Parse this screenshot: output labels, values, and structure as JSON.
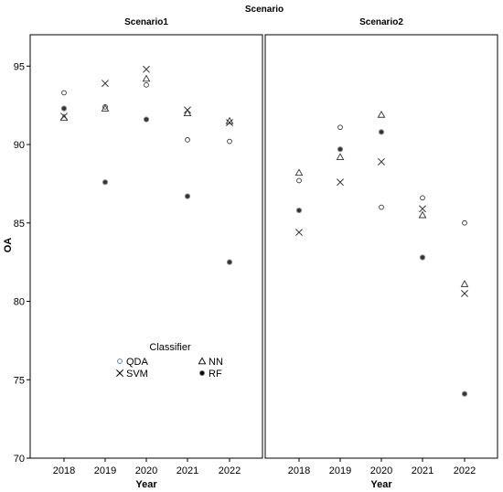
{
  "chart_data": {
    "type": "scatter",
    "title": "Scenario",
    "xlabel": "Year",
    "ylabel": "OA",
    "ylim": [
      70,
      97
    ],
    "yticks": [
      70,
      75,
      80,
      85,
      90,
      95
    ],
    "categories": [
      "2018",
      "2019",
      "2020",
      "2021",
      "2022"
    ],
    "legend": {
      "title": "Classifier",
      "placement": "bottom-left-inside",
      "entries": [
        {
          "name": "QDA",
          "marker": "circle",
          "color": "#4a6fb0"
        },
        {
          "name": "NN",
          "marker": "triangle",
          "color": "#000000"
        },
        {
          "name": "SVM",
          "marker": "x",
          "color": "#000000"
        },
        {
          "name": "RF",
          "marker": "filled-circle",
          "color": "#000000"
        }
      ]
    },
    "panels": [
      {
        "name": "Scenario1",
        "series": [
          {
            "name": "QDA",
            "values": [
              93.3,
              92.4,
              93.8,
              90.3,
              90.2
            ]
          },
          {
            "name": "NN",
            "values": [
              91.7,
              92.3,
              94.2,
              92.0,
              91.5
            ]
          },
          {
            "name": "SVM",
            "values": [
              91.8,
              93.9,
              94.8,
              92.2,
              91.4
            ]
          },
          {
            "name": "RF",
            "values": [
              92.3,
              87.6,
              91.6,
              86.7,
              82.5
            ]
          }
        ]
      },
      {
        "name": "Scenario2",
        "series": [
          {
            "name": "QDA",
            "values": [
              87.7,
              91.1,
              86.0,
              86.6,
              85.0
            ]
          },
          {
            "name": "NN",
            "values": [
              88.2,
              89.2,
              91.9,
              85.5,
              81.1
            ]
          },
          {
            "name": "SVM",
            "values": [
              84.4,
              87.6,
              88.9,
              85.9,
              80.5
            ]
          },
          {
            "name": "RF",
            "values": [
              85.8,
              89.7,
              90.8,
              82.8,
              74.1
            ]
          }
        ]
      }
    ]
  }
}
